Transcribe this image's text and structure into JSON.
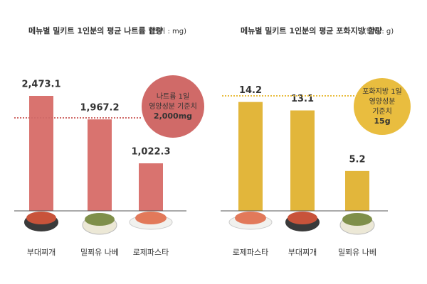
{
  "chart_data": [
    {
      "type": "bar",
      "title": "메뉴별 밀키트 1인분의 평균 나트륨 함량",
      "unit": "(단위 : mg)",
      "categories": [
        "부대찌개",
        "밀푀유 나베",
        "로제파스타"
      ],
      "values": [
        2473.1,
        1967.2,
        1022.3
      ],
      "value_labels": [
        "2,473.1",
        "1,967.2",
        "1,022.3"
      ],
      "color": "#d9736f",
      "reference": {
        "value": 2000,
        "label_lines": [
          "나트륨 1일",
          "영양성분 기준치",
          "2,000mg"
        ],
        "color": "#d06a68"
      }
    },
    {
      "type": "bar",
      "title": "메뉴별 밀키트 1인분의 평균 포화지방 함량",
      "unit": "(단위 : g)",
      "categories": [
        "로제파스타",
        "부대찌개",
        "밀푀유 나베"
      ],
      "values": [
        14.2,
        13.1,
        5.2
      ],
      "color": "#e2b63b",
      "reference": {
        "value": 15,
        "label_lines": [
          "포화지방 1일",
          "영양성분",
          "기준치",
          "15g"
        ],
        "color": "#e9bd3f"
      }
    }
  ]
}
